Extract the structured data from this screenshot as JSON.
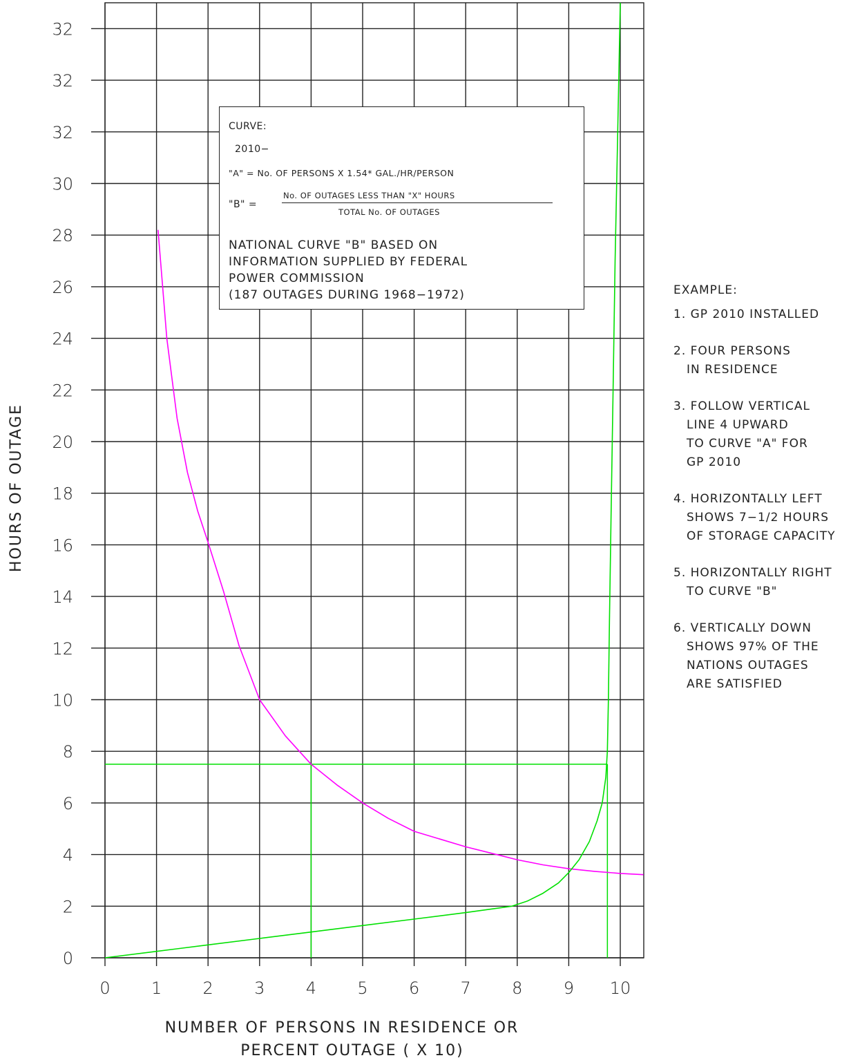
{
  "chart_data": {
    "type": "line",
    "xlabel_lines": [
      "NUMBER OF PERSONS IN RESIDENCE OR",
      "PERCENT OUTAGE ( X 10)"
    ],
    "ylabel": "HOURS OF OUTAGE",
    "x_ticks": [
      "0",
      "1",
      "2",
      "3",
      "4",
      "5",
      "6",
      "7",
      "8",
      "9",
      "10"
    ],
    "y_ticks": [
      "0",
      "2",
      "4",
      "6",
      "8",
      "10",
      "12",
      "14",
      "16",
      "18",
      "20",
      "22",
      "24",
      "26",
      "28",
      "30",
      "32",
      "32",
      "32"
    ],
    "xlim": [
      0,
      10.45
    ],
    "ylim": [
      0,
      37
    ],
    "grid": true,
    "series": [
      {
        "name": "A",
        "color": "#ff00ff",
        "x": [
          1.03,
          1.2,
          1.4,
          1.6,
          1.8,
          2.0,
          2.3,
          2.6,
          3.0,
          3.5,
          4.0,
          4.5,
          5.0,
          5.5,
          6.0,
          6.5,
          7.0,
          7.5,
          8.0,
          8.5,
          9.0,
          9.5,
          10.0,
          10.45
        ],
        "y": [
          28.2,
          24.0,
          20.9,
          18.8,
          17.3,
          16.1,
          14.2,
          12.1,
          10.0,
          8.6,
          7.5,
          6.7,
          6.0,
          5.4,
          4.9,
          4.6,
          4.3,
          4.05,
          3.8,
          3.6,
          3.45,
          3.35,
          3.27,
          3.22
        ]
      },
      {
        "name": "B",
        "color": "#00e000",
        "x": [
          0,
          1,
          2,
          3,
          4,
          5,
          6,
          7,
          7.9,
          8.2,
          8.5,
          8.8,
          9.0,
          9.2,
          9.4,
          9.55,
          9.65,
          9.72,
          9.75,
          9.77,
          9.79,
          9.82,
          9.86,
          9.9,
          9.95,
          10.0
        ],
        "y": [
          0,
          0.25,
          0.5,
          0.75,
          1.0,
          1.25,
          1.5,
          1.75,
          2.0,
          2.2,
          2.5,
          2.9,
          3.3,
          3.8,
          4.5,
          5.3,
          6.0,
          7.0,
          8.0,
          10.0,
          13.0,
          17.0,
          22.0,
          27.0,
          32.0,
          37.0
        ]
      }
    ],
    "guide_lines": {
      "color": "#00e000",
      "example_x": 4,
      "example_y": 7.5,
      "result_x": 9.75
    }
  },
  "legend_box": {
    "curve_label": "CURVE:",
    "model": "2010−",
    "formula_a": "\"A\" = No. OF PERSONS X 1.54* GAL./HR/PERSON",
    "formula_b_label": "\"B\" =",
    "formula_b_numerator": "No. OF OUTAGES LESS THAN \"X\" HOURS",
    "formula_b_denominator": "TOTAL No. OF OUTAGES",
    "note_lines": [
      "NATIONAL CURVE \"B\" BASED ON",
      "INFORMATION SUPPLIED BY FEDERAL",
      "POWER COMMISSION",
      "(187 OUTAGES DURING 1968−1972)"
    ]
  },
  "example": {
    "title": "EXAMPLE:",
    "steps": [
      [
        "1. GP 2010 INSTALLED"
      ],
      [
        "2. FOUR PERSONS",
        "IN RESIDENCE"
      ],
      [
        "3. FOLLOW VERTICAL",
        "LINE 4 UPWARD",
        "TO CURVE \"A\" FOR",
        "GP 2010"
      ],
      [
        "4. HORIZONTALLY LEFT",
        "SHOWS 7−1/2 HOURS",
        "OF STORAGE CAPACITY"
      ],
      [
        "5. HORIZONTALLY RIGHT",
        "TO CURVE \"B\""
      ],
      [
        "6. VERTICALLY DOWN",
        "SHOWS 97% OF THE",
        "NATIONS OUTAGES",
        "ARE SATISFIED"
      ]
    ]
  }
}
